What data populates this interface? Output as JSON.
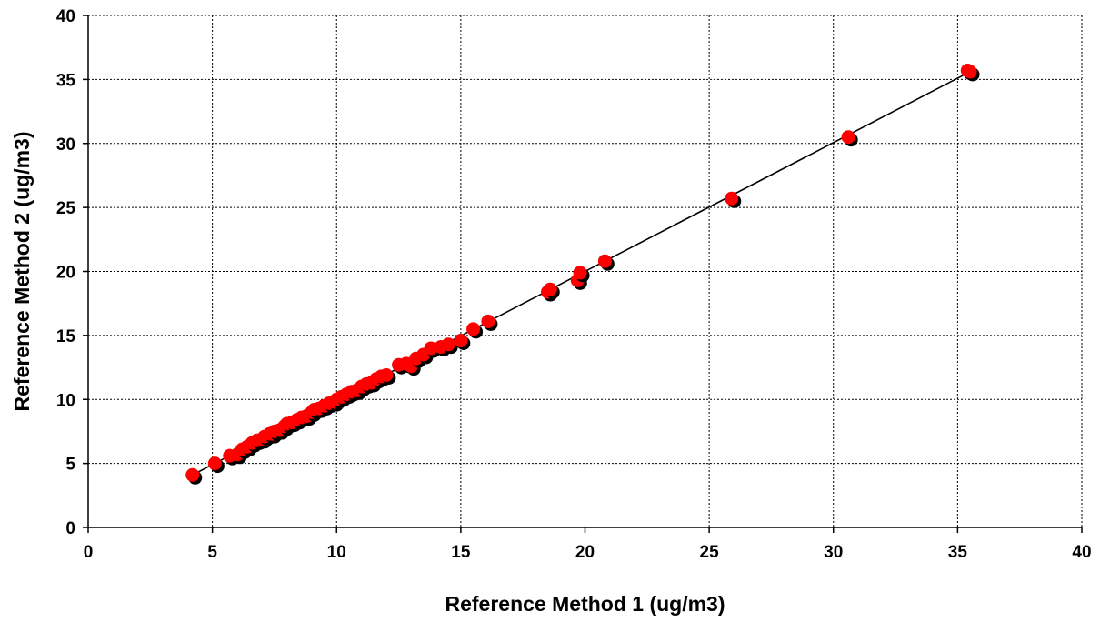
{
  "chart_data": {
    "type": "scatter",
    "xlabel": "Reference Method 1 (ug/m3)",
    "ylabel": "Reference Method 2 (ug/m3)",
    "xlim": [
      0,
      40
    ],
    "ylim": [
      0,
      40
    ],
    "x_ticks": [
      "0",
      "5",
      "10",
      "15",
      "20",
      "25",
      "30",
      "35",
      "40"
    ],
    "y_ticks": [
      "0",
      "5",
      "10",
      "15",
      "20",
      "25",
      "30",
      "35",
      "40"
    ],
    "grid": true,
    "legend": "none",
    "marker_color": "#ff0000",
    "shadow_color": "#000000",
    "trendline": {
      "x": [
        4.2,
        35.5
      ],
      "y": [
        4.1,
        35.6
      ]
    },
    "series": [
      {
        "x": [
          4.2,
          5.1,
          5.7,
          6.0,
          6.2,
          6.4,
          6.6,
          6.8,
          7.0,
          7.1,
          7.3,
          7.4,
          7.5,
          7.7,
          7.9,
          8.0,
          8.2,
          8.4,
          8.6,
          8.8,
          9.0,
          9.1,
          9.3,
          9.5,
          9.7,
          9.9,
          10.0,
          10.2,
          10.4,
          10.6,
          10.8,
          11.0,
          11.2,
          11.4,
          11.6,
          11.8,
          12.0,
          12.5,
          12.8,
          13.0,
          13.2,
          13.5,
          13.8,
          14.2,
          14.5,
          15.0,
          15.5,
          16.1,
          18.5,
          18.6,
          19.7,
          19.8,
          20.8,
          25.9,
          30.6,
          35.4,
          35.5
        ],
        "y": [
          4.1,
          5.0,
          5.6,
          5.7,
          6.1,
          6.3,
          6.6,
          6.8,
          6.9,
          7.1,
          7.3,
          7.3,
          7.5,
          7.6,
          7.9,
          8.1,
          8.2,
          8.4,
          8.6,
          8.7,
          9.0,
          9.2,
          9.3,
          9.5,
          9.7,
          9.8,
          10.0,
          10.2,
          10.4,
          10.6,
          10.7,
          11.0,
          11.2,
          11.3,
          11.6,
          11.8,
          11.9,
          12.7,
          12.8,
          12.6,
          13.2,
          13.5,
          14.0,
          14.1,
          14.3,
          14.6,
          15.5,
          16.1,
          18.4,
          18.6,
          19.3,
          19.9,
          20.8,
          25.7,
          30.5,
          35.7,
          35.6
        ]
      }
    ]
  }
}
